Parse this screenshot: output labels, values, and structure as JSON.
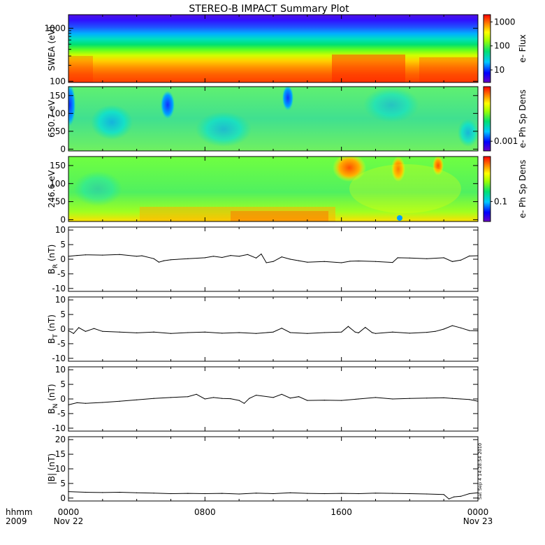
{
  "title": "STEREO-B IMPACT Summary Plot",
  "timestamp": "Sat Sep  4 14:28:54 2010",
  "x_axis": {
    "label_left_top": "hhmm",
    "label_left_bottom": "2009",
    "ticks": [
      {
        "value": 0,
        "top": "0000",
        "bottom": "Nov 22"
      },
      {
        "value": 8,
        "top": "0800",
        "bottom": ""
      },
      {
        "value": 16,
        "top": "1600",
        "bottom": ""
      },
      {
        "value": 24,
        "top": "0000",
        "bottom": "Nov 23"
      }
    ],
    "range_hours": [
      0,
      24
    ]
  },
  "colors": {
    "axis": "#000000",
    "trace": "#000000",
    "background": "#ffffff",
    "colorbar": [
      "#6a00c8",
      "#0000ff",
      "#00c8ff",
      "#00e070",
      "#a0ff00",
      "#ffff00",
      "#ff8000",
      "#ff0000"
    ]
  },
  "chart_data": [
    {
      "type": "heatmap",
      "ylabel": "SWEA (eV)",
      "yscale": "log",
      "ylim": [
        95,
        1800
      ],
      "yticks": [
        {
          "value": 100,
          "label": "100"
        },
        {
          "value": 1000,
          "label": "1000"
        }
      ],
      "colorbar": {
        "label": "e- Flux",
        "scale": "log",
        "range": [
          3,
          2000
        ],
        "ticks": [
          {
            "value": 10,
            "label": "10"
          },
          {
            "value": 100,
            "label": "100"
          },
          {
            "value": 1000,
            "label": "1000"
          }
        ]
      }
    },
    {
      "type": "heatmap",
      "ylabel": "650.7 eV",
      "yscale": "linear",
      "ylim": [
        -5,
        175
      ],
      "yticks": [
        {
          "value": 0,
          "label": "0"
        },
        {
          "value": 50,
          "label": "50"
        },
        {
          "value": 100,
          "label": "100"
        },
        {
          "value": 150,
          "label": "150"
        }
      ],
      "colorbar": {
        "label": "e- Ph Sp Dens",
        "scale": "log",
        "range": [
          0.0005,
          0.05
        ],
        "ticks": [
          {
            "value": 0.001,
            "label": "0.001"
          }
        ]
      }
    },
    {
      "type": "heatmap",
      "ylabel": "246.6 eV",
      "yscale": "linear",
      "ylim": [
        -5,
        175
      ],
      "yticks": [
        {
          "value": 0,
          "label": "0"
        },
        {
          "value": 50,
          "label": "50"
        },
        {
          "value": 100,
          "label": "100"
        },
        {
          "value": 150,
          "label": "150"
        }
      ],
      "colorbar": {
        "label": "e- Ph Sp Dens",
        "scale": "log",
        "range": [
          0.03,
          1.5
        ],
        "ticks": [
          {
            "value": 0.1,
            "label": "0.1"
          }
        ]
      }
    },
    {
      "type": "line",
      "ylabel": "B",
      "ylabel_sub": "R",
      "yunit": "(nT)",
      "ylim": [
        -11,
        11
      ],
      "yticks": [
        {
          "value": -10,
          "label": "-10"
        },
        {
          "value": -5,
          "label": "-5"
        },
        {
          "value": 0,
          "label": "0"
        },
        {
          "value": 5,
          "label": "5"
        },
        {
          "value": 10,
          "label": "10"
        }
      ],
      "x": [
        0,
        0.5,
        1,
        2,
        3,
        4,
        4.3,
        5,
        5.3,
        5.6,
        6,
        7,
        8,
        8.5,
        9,
        9.5,
        10,
        10.5,
        11,
        11.3,
        11.6,
        12,
        12.5,
        13,
        13.5,
        14,
        15,
        16,
        16.5,
        17,
        18,
        19,
        19.3,
        20,
        21,
        22,
        22.5,
        23,
        23.5,
        24
      ],
      "y": [
        1.0,
        1.3,
        1.5,
        1.4,
        1.6,
        1.0,
        1.2,
        0.2,
        -1.0,
        -0.5,
        -0.2,
        0.2,
        0.5,
        1.0,
        0.6,
        1.3,
        1.0,
        1.6,
        0.4,
        1.8,
        -1.2,
        -0.8,
        0.8,
        0.0,
        -0.5,
        -1.0,
        -0.8,
        -1.2,
        -0.7,
        -0.6,
        -0.8,
        -1.1,
        0.5,
        0.4,
        0.2,
        0.5,
        -0.8,
        -0.3,
        1.1,
        1.2
      ]
    },
    {
      "type": "line",
      "ylabel": "B",
      "ylabel_sub": "T",
      "yunit": "(nT)",
      "ylim": [
        -11,
        11
      ],
      "yticks": [
        {
          "value": -10,
          "label": "-10"
        },
        {
          "value": -5,
          "label": "-5"
        },
        {
          "value": 0,
          "label": "0"
        },
        {
          "value": 5,
          "label": "5"
        },
        {
          "value": 10,
          "label": "10"
        }
      ],
      "x": [
        0,
        0.3,
        0.6,
        1,
        1.5,
        2,
        3,
        4,
        5,
        6,
        7,
        8,
        9,
        10,
        11,
        12,
        12.5,
        13,
        14,
        15,
        16,
        16.4,
        16.8,
        17,
        17.4,
        17.8,
        18,
        19,
        20,
        21,
        21.5,
        22,
        22.5,
        23,
        23.5,
        24
      ],
      "y": [
        -0.5,
        -1.5,
        0.5,
        -0.8,
        0.2,
        -0.8,
        -1.0,
        -1.3,
        -1.0,
        -1.5,
        -1.2,
        -1.0,
        -1.4,
        -1.2,
        -1.5,
        -1.0,
        0.3,
        -1.2,
        -1.5,
        -1.2,
        -1.0,
        0.9,
        -1.0,
        -1.3,
        0.6,
        -1.2,
        -1.5,
        -1.0,
        -1.4,
        -1.1,
        -0.8,
        0.0,
        1.2,
        0.4,
        -0.5,
        -0.6
      ]
    },
    {
      "type": "line",
      "ylabel": "B",
      "ylabel_sub": "N",
      "yunit": "(nT)",
      "ylim": [
        -11,
        11
      ],
      "yticks": [
        {
          "value": -10,
          "label": "-10"
        },
        {
          "value": -5,
          "label": "-5"
        },
        {
          "value": 0,
          "label": "0"
        },
        {
          "value": 5,
          "label": "5"
        },
        {
          "value": 10,
          "label": "10"
        }
      ],
      "x": [
        0,
        0.5,
        1,
        2,
        3,
        4,
        5,
        6,
        7,
        7.5,
        8,
        8.5,
        9,
        9.5,
        10,
        10.3,
        10.6,
        11,
        12,
        12.5,
        13,
        13.5,
        14,
        15,
        16,
        17,
        18,
        19,
        20,
        21,
        22,
        22.5,
        23,
        23.5,
        24
      ],
      "y": [
        -2.0,
        -1.3,
        -1.5,
        -1.2,
        -0.8,
        -0.3,
        0.2,
        0.5,
        0.8,
        1.6,
        0.0,
        0.5,
        0.2,
        0.1,
        -0.5,
        -1.5,
        0.2,
        1.3,
        0.5,
        1.6,
        0.3,
        0.8,
        -0.5,
        -0.4,
        -0.5,
        0.0,
        0.5,
        0.0,
        0.2,
        0.3,
        0.4,
        0.2,
        0.0,
        -0.2,
        -0.8
      ]
    },
    {
      "type": "line",
      "ylabel": "|B|",
      "ylabel_sub": "",
      "yunit": "(nT)",
      "ylim": [
        -1,
        21
      ],
      "yticks": [
        {
          "value": 0,
          "label": "0"
        },
        {
          "value": 5,
          "label": "5"
        },
        {
          "value": 10,
          "label": "10"
        },
        {
          "value": 15,
          "label": "15"
        },
        {
          "value": 20,
          "label": "20"
        }
      ],
      "x": [
        0,
        1,
        2,
        3,
        4,
        5,
        6,
        7,
        8,
        9,
        10,
        11,
        12,
        13,
        14,
        15,
        16,
        17,
        18,
        19,
        20,
        21,
        22,
        22.3,
        22.6,
        23,
        23.5,
        24
      ],
      "y": [
        2.2,
        2.0,
        1.9,
        2.0,
        1.8,
        1.7,
        1.5,
        1.6,
        1.5,
        1.6,
        1.4,
        1.7,
        1.5,
        1.8,
        1.6,
        1.5,
        1.6,
        1.5,
        1.7,
        1.6,
        1.5,
        1.4,
        1.2,
        -0.3,
        0.4,
        0.6,
        1.5,
        1.8
      ]
    }
  ]
}
